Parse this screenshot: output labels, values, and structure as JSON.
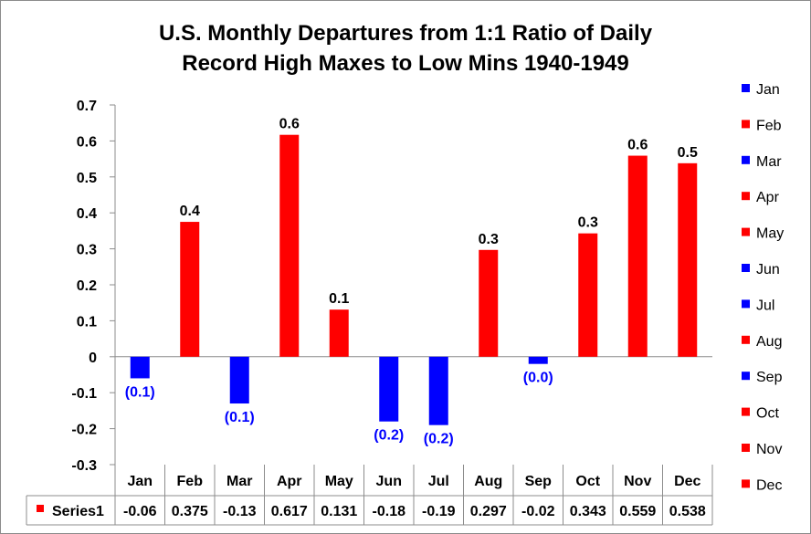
{
  "chart_data": {
    "type": "bar",
    "title_lines": [
      "U.S. Monthly Departures from 1:1 Ratio of Daily",
      "Record High Maxes to Low Mins 1940-1949"
    ],
    "categories": [
      "Jan",
      "Feb",
      "Mar",
      "Apr",
      "May",
      "Jun",
      "Jul",
      "Aug",
      "Sep",
      "Oct",
      "Nov",
      "Dec"
    ],
    "series": [
      {
        "name": "Series1",
        "values": [
          -0.06,
          0.375,
          -0.13,
          0.617,
          0.131,
          -0.18,
          -0.19,
          0.297,
          -0.02,
          0.343,
          0.559,
          0.538
        ],
        "table_values": [
          "-0.06",
          "0.375",
          "-0.13",
          "0.617",
          "0.131",
          "-0.18",
          "-0.19",
          "0.297",
          "-0.02",
          "0.343",
          "0.559",
          "0.538"
        ],
        "data_labels": [
          "(0.1)",
          "0.4",
          "(0.1)",
          "0.6",
          "0.1",
          "(0.2)",
          "(0.2)",
          "0.3",
          "(0.0)",
          "0.3",
          "0.6",
          "0.5"
        ]
      }
    ],
    "ylim": [
      -0.3,
      0.7
    ],
    "yticks": [
      "0.7",
      "0.6",
      "0.5",
      "0.4",
      "0.3",
      "0.2",
      "0.1",
      "0",
      "-0.1",
      "-0.2",
      "-0.3"
    ],
    "legend_position": "right",
    "legend_entries": [
      "Jan",
      "Feb",
      "Mar",
      "Apr",
      "May",
      "Jun",
      "Jul",
      "Aug",
      "Sep",
      "Oct",
      "Nov",
      "Dec"
    ],
    "data_table": true,
    "colors": {
      "positive": "#ff0000",
      "negative": "#0000ff"
    }
  }
}
